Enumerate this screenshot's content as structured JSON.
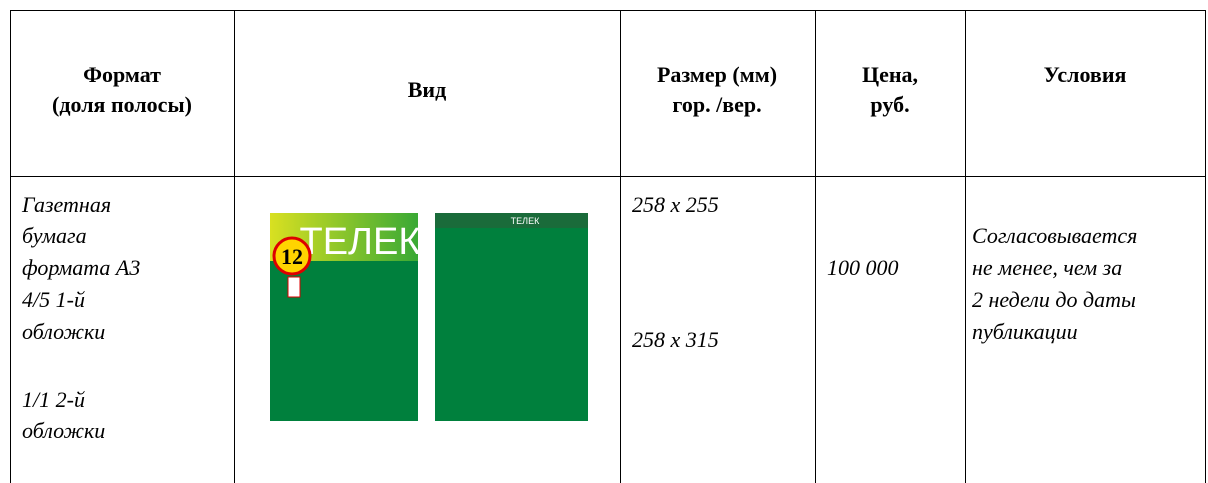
{
  "table": {
    "headers": [
      [
        "Формат",
        "(доля полосы)"
      ],
      [
        "Вид"
      ],
      [
        "Размер (мм)",
        "гор. /вер."
      ],
      [
        "Цена,",
        "руб."
      ],
      [
        "Условия"
      ]
    ],
    "rows": [
      {
        "format": [
          [
            "Газетная",
            "бумага",
            "формата А3",
            "4/5 1-й",
            "обложки"
          ],
          [
            "1/1 2-й",
            "обложки"
          ]
        ],
        "view": {
          "covers": [
            {
              "title": "ТЕЛЕК",
              "badge": "12"
            },
            {
              "title": "ТЕЛЕК"
            }
          ]
        },
        "size": [
          "258 x 255",
          "258 x 315"
        ],
        "price": "100 000",
        "terms": [
          "Согласовывается",
          "не менее, чем за",
          "2 недели до даты",
          "публикации"
        ]
      }
    ]
  }
}
